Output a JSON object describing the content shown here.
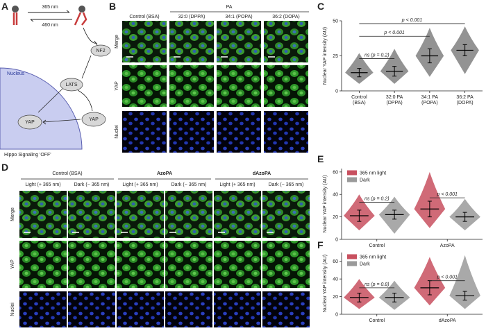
{
  "figure": {
    "panel_labels": [
      "A",
      "B",
      "C",
      "D",
      "E",
      "F"
    ],
    "panel_a": {
      "light_on": "365 nm",
      "light_off": "460 nm",
      "nodes": [
        "NF2",
        "LATS",
        "YAP",
        "YAP"
      ],
      "compartment": "Nucleus",
      "caption": "Hippo Signaling 'OFF'"
    },
    "panel_b": {
      "group": "PA",
      "columns": [
        "Control (BSA)",
        "32:0 (DPPA)",
        "34:1 (POPA)",
        "36:2 (DOPA)"
      ],
      "rows": [
        "Merge",
        "YAP",
        "Nuclei"
      ]
    },
    "panel_d": {
      "groups": [
        "Control (BSA)",
        "AzoPA",
        "dAzoPA"
      ],
      "conditions": [
        "Light (+ 365 nm)",
        "Dark (− 365 nm)"
      ],
      "rows": [
        "Merge",
        "YAP",
        "Nuclei"
      ]
    }
  },
  "chart_data": [
    {
      "type": "swarm",
      "ylabel": "Nuclear YAP intensity (AU)",
      "categories": [
        "Control",
        "32:0 PA",
        "34:1 PA",
        "36:2 PA"
      ],
      "sublabels": [
        "(BSA)",
        "(DPPA)",
        "(POPA)",
        "(DOPA)"
      ],
      "ylim": [
        0,
        50
      ],
      "yticks": [
        0,
        25,
        50
      ],
      "series": [
        {
          "color": "#808080",
          "mean": [
            13,
            14,
            25,
            29
          ],
          "sd": [
            3,
            3.5,
            5,
            4
          ],
          "min": [
            5,
            5,
            10,
            12
          ],
          "max": [
            27,
            30,
            45,
            46
          ]
        }
      ],
      "brackets": [
        {
          "text": "ns (p = 0.2)",
          "from": 0,
          "to": 1,
          "y": 23
        },
        {
          "text": "p < 0.001",
          "from": 0,
          "to": 2,
          "y": 39
        },
        {
          "text": "p < 0.001",
          "from": 0,
          "to": 3,
          "y": 48
        }
      ]
    },
    {
      "type": "swarm",
      "ylabel": "Nuclear YAP intensity (AU)",
      "categories": [
        "Control",
        "AzoPA"
      ],
      "ylim": [
        0,
        63
      ],
      "yticks": [
        0,
        20,
        40,
        60
      ],
      "legend": "upper left",
      "series": [
        {
          "name": "365 nm light",
          "color": "#c8505f",
          "mean": [
            21,
            27
          ],
          "sd": [
            5,
            7
          ],
          "min": [
            8,
            10
          ],
          "max": [
            40,
            60
          ]
        },
        {
          "name": "Dark",
          "color": "#9a9a9a",
          "mean": [
            22,
            20
          ],
          "sd": [
            4,
            4
          ],
          "min": [
            5,
            8
          ],
          "max": [
            38,
            36
          ]
        }
      ],
      "brackets": [
        {
          "text": "ns (p = 0.2)",
          "category": 0,
          "y": 33
        },
        {
          "text": "p < 0.001",
          "category": 1,
          "y": 37
        }
      ]
    },
    {
      "type": "swarm",
      "ylabel": "Nuclear YAP intensity (AU)",
      "categories": [
        "Control",
        "dAzoPA"
      ],
      "ylim": [
        0,
        70
      ],
      "yticks": [
        0,
        20,
        40,
        60
      ],
      "legend": "upper left",
      "series": [
        {
          "name": "365 nm light",
          "color": "#c8505f",
          "mean": [
            19,
            30
          ],
          "sd": [
            5,
            8
          ],
          "min": [
            6,
            10
          ],
          "max": [
            40,
            65
          ]
        },
        {
          "name": "Dark",
          "color": "#9a9a9a",
          "mean": [
            19,
            21
          ],
          "sd": [
            5,
            5
          ],
          "min": [
            5,
            6
          ],
          "max": [
            38,
            67
          ]
        }
      ],
      "brackets": [
        {
          "text": "ns (p = 0.8)",
          "category": 0,
          "y": 30
        },
        {
          "text": "p < 0.001",
          "category": 1,
          "y": 38
        }
      ]
    }
  ]
}
